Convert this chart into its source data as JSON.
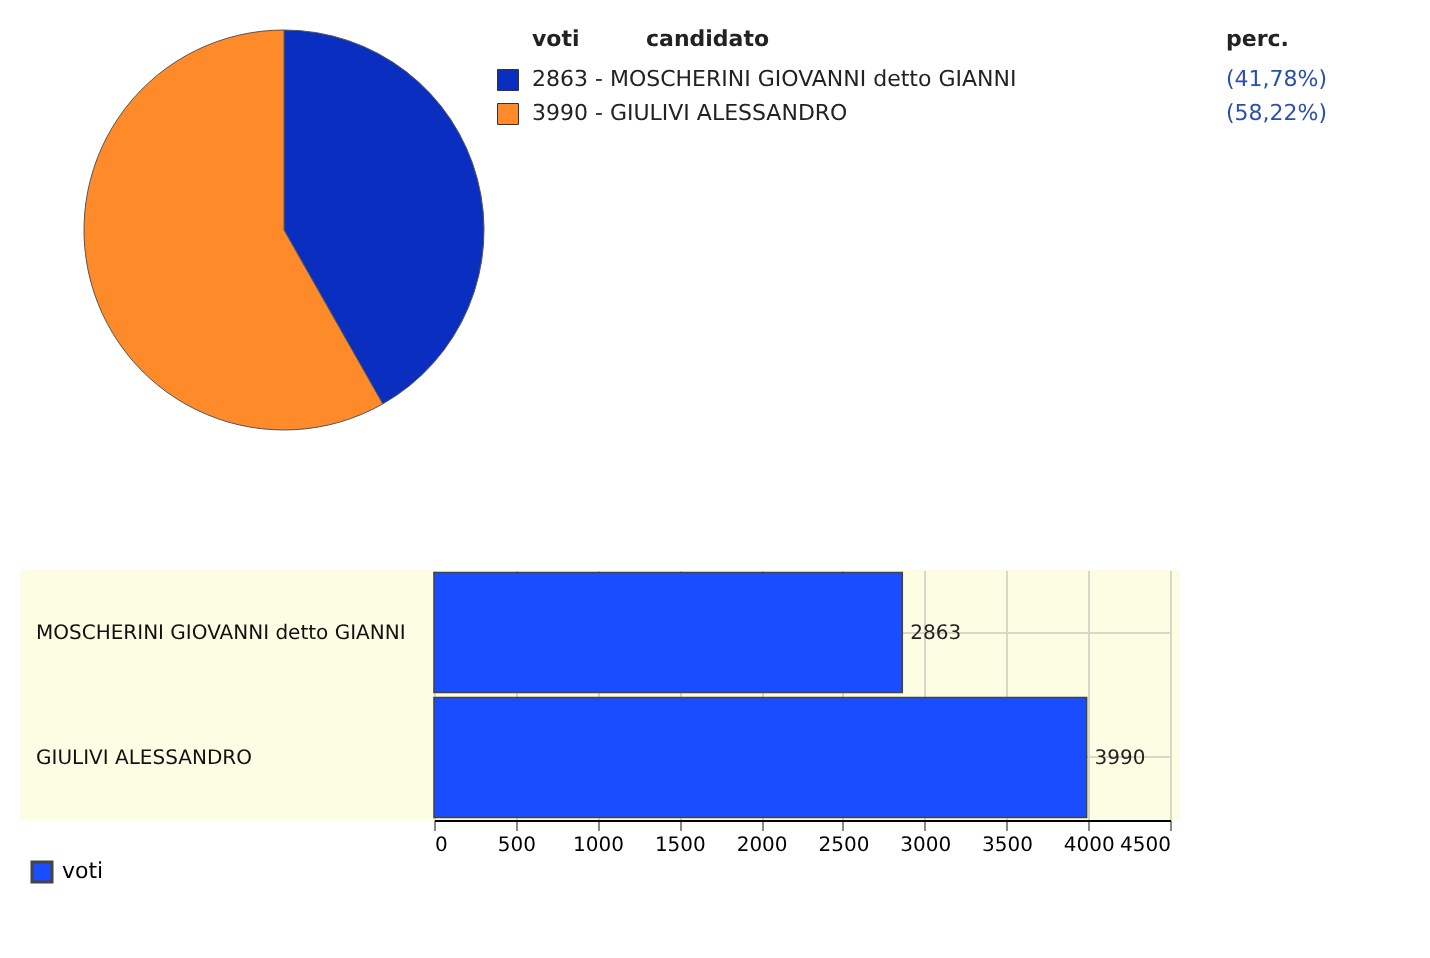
{
  "chart_data": [
    {
      "type": "pie",
      "categories": [
        "2863 - MOSCHERINI GIOVANNI detto GIANNI",
        "3990 - GIULIVI ALESSANDRO"
      ],
      "values": [
        41.78,
        58.22
      ],
      "colors": [
        "#0a2fc0",
        "#ff8a2a"
      ],
      "value_labels": [
        "(41,78%)",
        "(58,22%)"
      ],
      "legend": "top right",
      "annotations": [
        "voti",
        "candidato",
        "perc."
      ]
    },
    {
      "type": "bar",
      "orientation": "horizontal",
      "categories": [
        "MOSCHERINI GIOVANNI detto GIANNI",
        "GIULIVI ALESSANDRO"
      ],
      "series": [
        {
          "name": "voti",
          "color": "#1a4dff",
          "values": [
            2863,
            3990
          ]
        }
      ],
      "xlim": [
        0,
        4500
      ],
      "xticks": [
        0,
        500,
        1000,
        1500,
        2000,
        2500,
        3000,
        3500,
        4000,
        4500
      ],
      "grid": "x",
      "data_labels": true,
      "legend": "bottom left"
    }
  ]
}
